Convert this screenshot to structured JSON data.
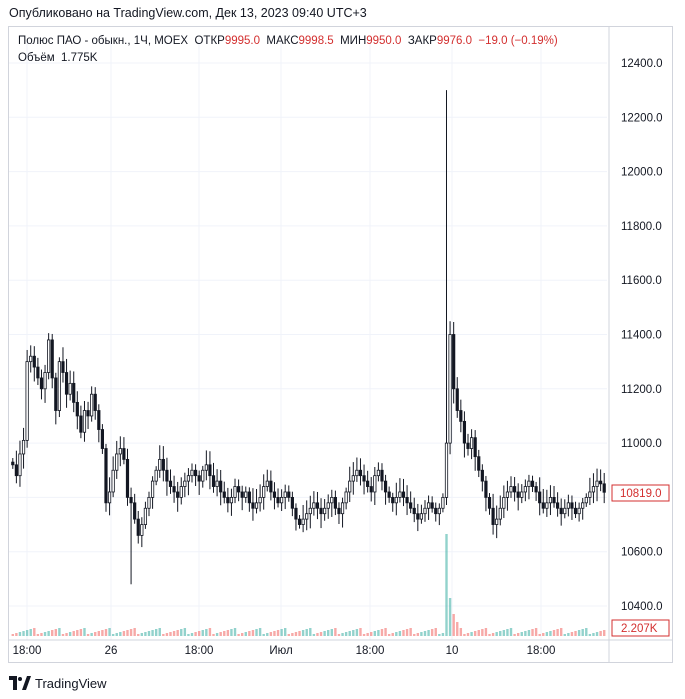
{
  "published": "Опубликовано на TradingView.com, Дек 13, 2023 09:40 UTC+3",
  "legend": {
    "symbol": "Полюс ПАО - обыкн., 1Ч, MOEX",
    "open_label": "ОТКР",
    "open": "9995.0",
    "high_label": "МАКС",
    "high": "9998.5",
    "low_label": "МИН",
    "low": "9950.0",
    "close_label": "ЗАКР",
    "close": "9976.0",
    "change": "−19.0 (−0.19%)"
  },
  "volume_legend": {
    "label": "Объём",
    "value": "1.775K"
  },
  "footer": {
    "brand": "TradingView"
  },
  "colors": {
    "up": "#26a69a",
    "down": "#ef5350",
    "candle": "#131722",
    "price_tag": "#d32f2f",
    "grid": "#f0f3fa"
  },
  "chart_data": {
    "type": "candlestick",
    "price_axis": {
      "ticks": [
        "12400.0",
        "12200.0",
        "12000.0",
        "11800.0",
        "11600.0",
        "11400.0",
        "11200.0",
        "11000.0",
        "10800.0",
        "10600.0",
        "10400.0"
      ],
      "range": [
        10315,
        12490
      ]
    },
    "time_axis": {
      "labels": [
        "18:00",
        "26",
        "18:00",
        "Июл",
        "18:00",
        "10",
        "18:00"
      ]
    },
    "last_price_tag": "10819.0",
    "last_volume_tag": "2.207K",
    "close_series": [
      10920,
      10880,
      10960,
      11010,
      11300,
      11320,
      11280,
      11240,
      11200,
      11260,
      11380,
      11240,
      11120,
      11300,
      11260,
      11180,
      11220,
      11150,
      11100,
      11040,
      11120,
      11100,
      11180,
      11120,
      11050,
      10980,
      10780,
      10820,
      10900,
      10960,
      10980,
      10940,
      10800,
      10780,
      10720,
      10660,
      10700,
      10760,
      10800,
      10860,
      10900,
      10940,
      10900,
      10860,
      10840,
      10820,
      10800,
      10840,
      10860,
      10880,
      10900,
      10880,
      10860,
      10900,
      10920,
      10880,
      10840,
      10860,
      10820,
      10800,
      10780,
      10800,
      10840,
      10820,
      10800,
      10820,
      10780,
      10760,
      10780,
      10800,
      10840,
      10860,
      10820,
      10800,
      10780,
      10800,
      10820,
      10800,
      10760,
      10720,
      10700,
      10720,
      10740,
      10760,
      10780,
      10760,
      10740,
      10760,
      10780,
      10800,
      10760,
      10740,
      10780,
      10820,
      10860,
      10880,
      10900,
      10880,
      10860,
      10840,
      10820,
      10880,
      10900,
      10860,
      10820,
      10800,
      10780,
      10800,
      10820,
      10800,
      10780,
      10760,
      10740,
      10720,
      10740,
      10760,
      10780,
      10760,
      10740,
      10760,
      10800,
      11000,
      11400,
      11200,
      11120,
      11080,
      11000,
      10980,
      11020,
      10950,
      10900,
      10860,
      10800,
      10760,
      10700,
      10720,
      10760,
      10800,
      10820,
      10840,
      10820,
      10800,
      10820,
      10840,
      10860,
      10840,
      10820,
      10780,
      10760,
      10780,
      10800,
      10780,
      10760,
      10740,
      10760,
      10780,
      10760,
      10740,
      10760,
      10780,
      10800,
      10820,
      10840,
      10860,
      10850,
      10819
    ]
  }
}
